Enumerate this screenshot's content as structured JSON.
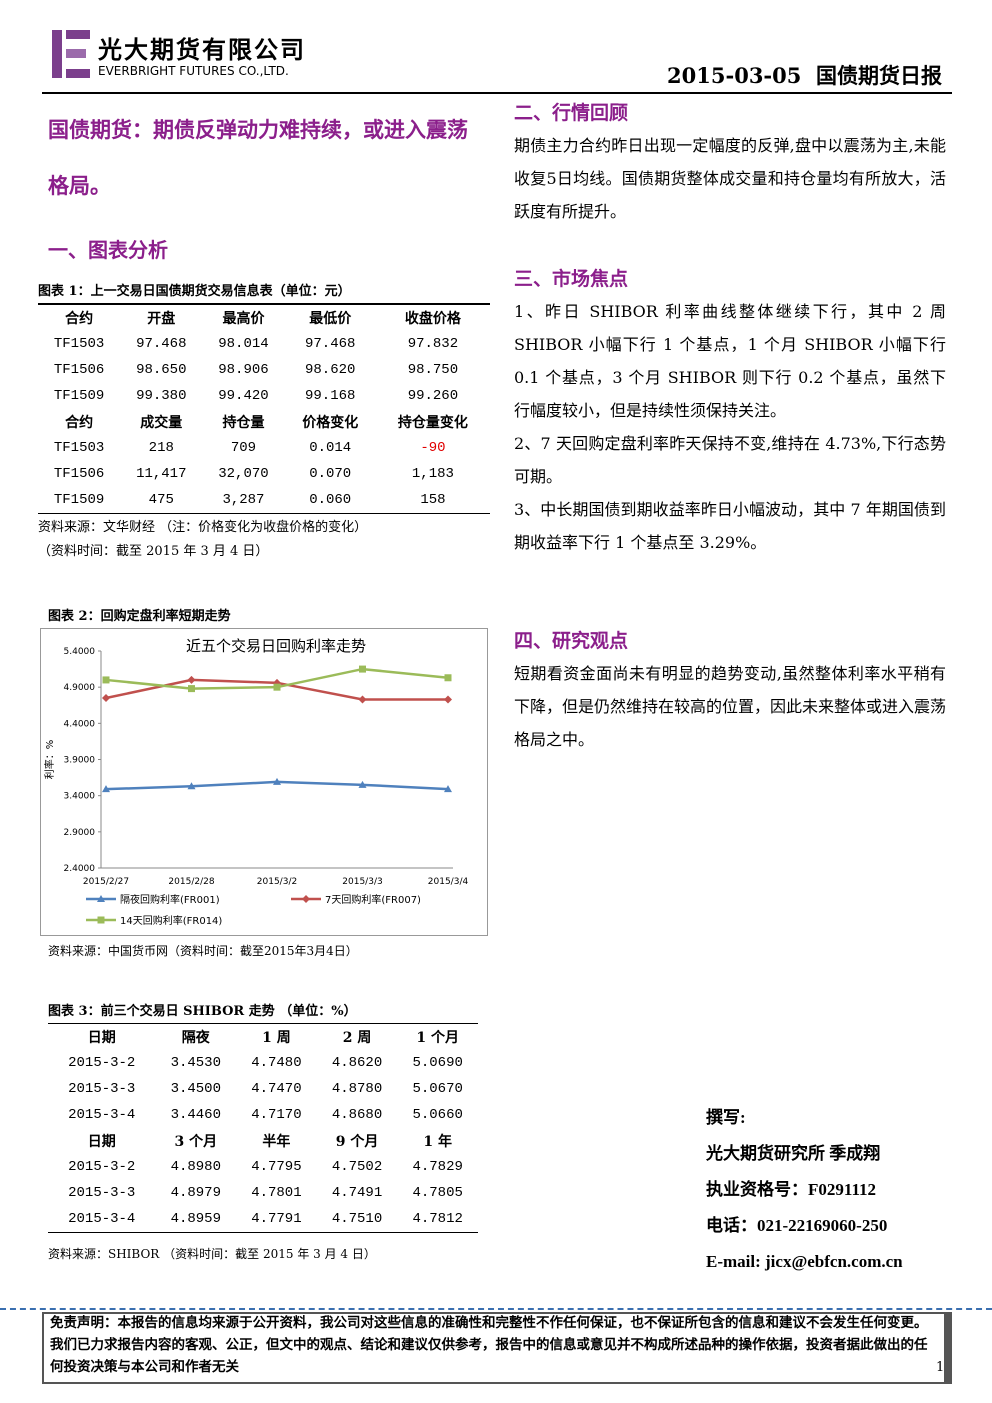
{
  "header": {
    "company_cn": "光大期货有限公司",
    "company_en": "EVERBRIGHT FUTURES CO.,LTD.",
    "date": "2015-03-05",
    "report_name": "国债期货日报"
  },
  "headline": "国债期货：期债反弹动力难持续，或进入震荡格局。",
  "section1": {
    "title": "一、图表分析"
  },
  "table1": {
    "caption": "图表 1：上一交易日国债期货交易信息表（单位：元）",
    "blocks": [
      {
        "header": [
          "合约",
          "开盘",
          "最高价",
          "最低价",
          "收盘价格"
        ],
        "rows": [
          [
            "TF1503",
            "97.468",
            "98.014",
            "97.468",
            "97.832"
          ],
          [
            "TF1506",
            "98.650",
            "98.906",
            "98.620",
            "98.750"
          ],
          [
            "TF1509",
            "99.380",
            "99.420",
            "99.168",
            "99.260"
          ]
        ]
      },
      {
        "header": [
          "合约",
          "成交量",
          "持仓量",
          "价格变化",
          "持仓量变化"
        ],
        "rows": [
          [
            "TF1503",
            "218",
            "709",
            "0.014",
            "-90"
          ],
          [
            "TF1506",
            "11,417",
            "32,070",
            "0.070",
            "1,183"
          ],
          [
            "TF1509",
            "475",
            "3,287",
            "0.060",
            "158"
          ]
        ]
      }
    ],
    "notes": [
      "资料来源：文华财经 （注：价格变化为收盘价格的变化）",
      "（资料时间：截至 2015 年 3 月 4 日）"
    ]
  },
  "figure2": {
    "caption": "图表 2：回购定盘利率短期走势",
    "source": "资料来源：中国货币网（资料时间：截至2015年3月4日）"
  },
  "chart_data": {
    "type": "line",
    "title": "近五个交易日回购利率走势",
    "ylabel": "利率：%",
    "categories": [
      "2015/2/27",
      "2015/2/28",
      "2015/3/2",
      "2015/3/3",
      "2015/3/4"
    ],
    "series": [
      {
        "name": "隔夜回购利率(FR001)",
        "color": "#4f81bd",
        "marker": "triangle",
        "values": [
          3.49,
          3.53,
          3.59,
          3.55,
          3.49
        ]
      },
      {
        "name": "7天回购利率(FR007)",
        "color": "#c0504d",
        "marker": "diamond",
        "values": [
          4.75,
          5.0,
          4.96,
          4.73,
          4.73
        ]
      },
      {
        "name": "14天回购利率(FR014)",
        "color": "#9bbb59",
        "marker": "square",
        "values": [
          5.0,
          4.88,
          4.9,
          5.15,
          5.03
        ]
      }
    ],
    "ylim": [
      2.4,
      5.4
    ],
    "yticks": [
      {
        "value": 2.4,
        "label": "2.4000"
      },
      {
        "value": 2.9,
        "label": "2.9000"
      },
      {
        "value": 3.4,
        "label": "3.4000"
      },
      {
        "value": 3.9,
        "label": "3.9000"
      },
      {
        "value": 4.4,
        "label": "4.4000"
      },
      {
        "value": 4.9,
        "label": "4.9000"
      },
      {
        "value": 5.4,
        "label": "5.4000"
      }
    ]
  },
  "table3": {
    "caption": "图表 3：前三个交易日 SHIBOR 走势 （单位：%）",
    "blocks": [
      {
        "header": [
          "日期",
          "隔夜",
          "1 周",
          "2 周",
          "1 个月"
        ],
        "rows": [
          [
            "2015-3-2",
            "3.4530",
            "4.7480",
            "4.8620",
            "5.0690"
          ],
          [
            "2015-3-3",
            "3.4500",
            "4.7470",
            "4.8780",
            "5.0670"
          ],
          [
            "2015-3-4",
            "3.4460",
            "4.7170",
            "4.8680",
            "5.0660"
          ]
        ]
      },
      {
        "header": [
          "日期",
          "3 个月",
          "半年",
          "9 个月",
          "1 年"
        ],
        "rows": [
          [
            "2015-3-2",
            "4.8980",
            "4.7795",
            "4.7502",
            "4.7829"
          ],
          [
            "2015-3-3",
            "4.8979",
            "4.7801",
            "4.7491",
            "4.7805"
          ],
          [
            "2015-3-4",
            "4.8959",
            "4.7791",
            "4.7510",
            "4.7812"
          ]
        ]
      }
    ],
    "source": "资料来源：SHIBOR （资料时间：截至 2015 年 3 月 4 日）"
  },
  "sections": [
    {
      "title": "二、行情回顾",
      "paragraphs": [
        "期债主力合约昨日出现一定幅度的反弹,盘中以震荡为主,未能收复5日均线。国债期货整体成交量和持仓量均有所放大，活跃度有所提升。"
      ]
    },
    {
      "title": "三、市场焦点",
      "paragraphs": [
        "1、昨日 SHIBOR 利率曲线整体继续下行，其中 2 周 SHIBOR 小幅下行 1 个基点，1 个月 SHIBOR 小幅下行 0.1 个基点，3 个月 SHIBOR 则下行 0.2 个基点，虽然下行幅度较小，但是持续性须保持关注。",
        "2、7 天回购定盘利率昨天保持不变,维持在 4.73%,下行态势可期。",
        "3、中长期国债到期收益率昨日小幅波动，其中 7 年期国债到期收益率下行 1 个基点至 3.29%。"
      ]
    },
    {
      "title": "四、研究观点",
      "paragraphs": [
        "短期看资金面尚未有明显的趋势变动,虽然整体利率水平稍有下降，但是仍然维持在较高的位置，因此未来整体或进入震荡格局之中。"
      ]
    }
  ],
  "author": {
    "label": "撰写:",
    "lines": [
      "光大期货研究所 季成翔",
      "执业资格号：F0291112",
      "电话：021-22169060-250",
      "E-mail: jicx@ebfcn.com.cn"
    ]
  },
  "disclaimer": "免责声明：本报告的信息均来源于公开资料，我公司对这些信息的准确性和完整性不作任何保证，也不保证所包含的信息和建议不会发生任何变更。我们已力求报告内容的客观、公正，但文中的观点、结论和建议仅供参考，报告中的信息或意见并不构成所述品种的操作依据，投资者据此做出的任何投资决策与本公司和作者无关",
  "page_number": "1"
}
